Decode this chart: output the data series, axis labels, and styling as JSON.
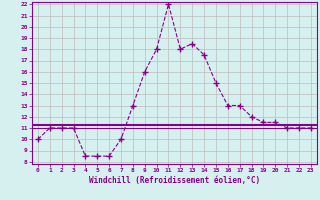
{
  "xlabel": "Windchill (Refroidissement éolien,°C)",
  "x_values": [
    0,
    1,
    2,
    3,
    4,
    5,
    6,
    7,
    8,
    9,
    10,
    11,
    12,
    13,
    14,
    15,
    16,
    17,
    18,
    19,
    20,
    21,
    22,
    23
  ],
  "y_curve": [
    10,
    11,
    11,
    11,
    8.5,
    8.5,
    8.5,
    10,
    13,
    16,
    18,
    22,
    18,
    18.5,
    17.5,
    15,
    13,
    13,
    12,
    11.5,
    11.5,
    11,
    11,
    11
  ],
  "y_hline1": 11.3,
  "y_hline2": 11.0,
  "line_color": "#880088",
  "bg_color": "#d6f0f0",
  "grid_color": "#bbbbbb",
  "ylim": [
    8,
    22
  ],
  "xlim": [
    -0.5,
    23.5
  ],
  "yticks": [
    8,
    9,
    10,
    11,
    12,
    13,
    14,
    15,
    16,
    17,
    18,
    19,
    20,
    21,
    22
  ],
  "xticks": [
    0,
    1,
    2,
    3,
    4,
    5,
    6,
    7,
    8,
    9,
    10,
    11,
    12,
    13,
    14,
    15,
    16,
    17,
    18,
    19,
    20,
    21,
    22,
    23
  ]
}
